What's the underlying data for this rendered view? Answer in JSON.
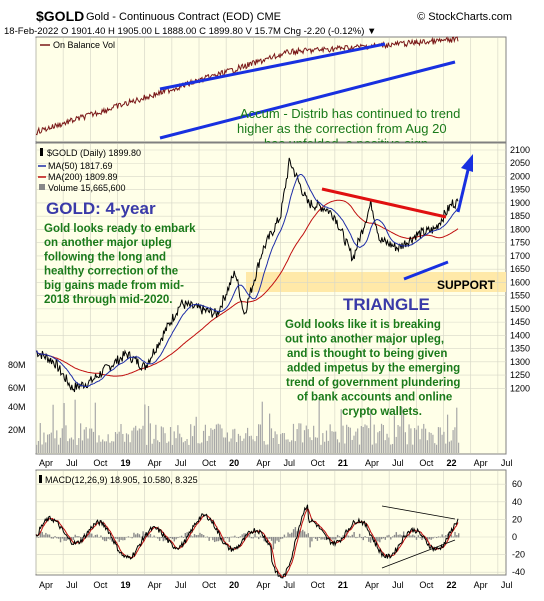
{
  "header": {
    "symbol": "$GOLD",
    "description": "Gold - Continuous Contract (EOD) CME",
    "source": "© StockCharts.com",
    "quote_line": "18-Feb-2022  O 1901.40  H 1905.00  L 1888.00  C 1899.80  V 15.7M  Chg -2.20 (-0.12%) ▼"
  },
  "obv_panel": {
    "legend": "On Balance Vol",
    "annotation": [
      "Accum - Distrib has continued to trend",
      "higher as the correction from Aug 20",
      "has unfolded, a positive sign."
    ]
  },
  "price_panel": {
    "legend_title": "$GOLD (Daily) 1899.80",
    "legend_ma50": "MA(50) 1817.69",
    "legend_ma200": "MA(200) 1809.89",
    "legend_volume": "Volume 15,665,600",
    "heading": "GOLD: 4-year",
    "body_left": [
      "Gold looks ready to embark",
      "on another major upleg",
      "following the long and",
      "healthy correction of the",
      "big gains made from mid-",
      "2018 through mid-2020."
    ],
    "support_label": "SUPPORT",
    "triangle_label": "TRIANGLE",
    "body_right": [
      "Gold looks like it is breaking",
      "out into another major upleg,",
      "and is thought to being given",
      "added impetus by the emerging",
      "trend of government plundering",
      "of bank accounts and online",
      "crypto wallets."
    ],
    "y_ticks": [
      "2100",
      "2050",
      "2000",
      "1950",
      "1900",
      "1850",
      "1800",
      "1750",
      "1700",
      "1650",
      "1600",
      "1550",
      "1500",
      "1450",
      "1400",
      "1350",
      "1300",
      "1250",
      "1200"
    ],
    "vol_ticks": [
      "60M",
      "40M",
      "20M",
      "80M"
    ]
  },
  "macd_panel": {
    "legend": "MACD(12,26,9) 18.905, 10.580, 8.325",
    "y_ticks": [
      "60",
      "40",
      "20",
      "0",
      "-20",
      "-40"
    ]
  },
  "x_axis": {
    "labels": [
      "Apr",
      "Jul",
      "Oct",
      "19",
      "Apr",
      "Jul",
      "Oct",
      "20",
      "Apr",
      "Jul",
      "Oct",
      "21",
      "Apr",
      "Jul",
      "Oct",
      "22",
      "Apr",
      "Jul"
    ]
  },
  "colors": {
    "panel_bg": "#ffffe8",
    "support_band": "#ffe9a8",
    "price_line": "#000000",
    "ma50": "#1f2ea8",
    "ma200": "#c01010",
    "annotation_text": "#1a7a1a",
    "heading_text": "#3a3aa8",
    "trendline_blue": "#1830e0",
    "trendline_red": "#e01010"
  },
  "chart_data": {
    "type": "line",
    "title": "$GOLD Gold - Continuous Contract (EOD) CME",
    "date_range": [
      "2018-04",
      "2022-07"
    ],
    "close": {
      "x": [
        "2018-04",
        "2018-06",
        "2018-08",
        "2018-10",
        "2018-12",
        "2019-02",
        "2019-04",
        "2019-06",
        "2019-08",
        "2019-10",
        "2019-12",
        "2020-02",
        "2020-03",
        "2020-05",
        "2020-07",
        "2020-08",
        "2020-10",
        "2020-12",
        "2021-01",
        "2021-03",
        "2021-05",
        "2021-06",
        "2021-08",
        "2021-10",
        "2021-12",
        "2022-02"
      ],
      "y": [
        1340,
        1300,
        1200,
        1225,
        1280,
        1330,
        1280,
        1400,
        1520,
        1500,
        1480,
        1640,
        1480,
        1720,
        1850,
        2060,
        1900,
        1880,
        1850,
        1690,
        1900,
        1760,
        1730,
        1780,
        1800,
        1900
      ]
    },
    "ma200_last": 1809.89,
    "ma50_last": 1817.69,
    "ylim": [
      1150,
      2120
    ],
    "support_range": [
      1670,
      1700
    ],
    "macd": {
      "macd": 18.905,
      "signal": 10.58,
      "histogram": 8.325,
      "ylim": [
        -45,
        65
      ]
    }
  }
}
